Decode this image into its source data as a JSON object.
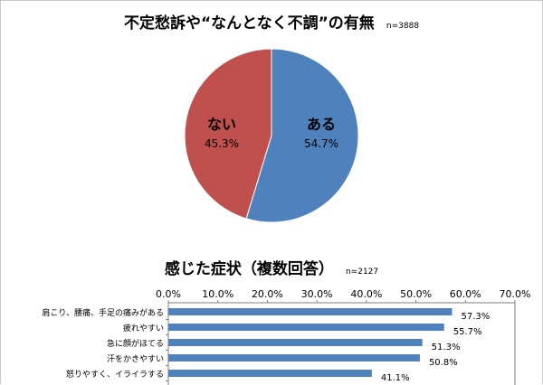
{
  "chart_data": [
    {
      "type": "pie",
      "title": "不定愁訴や“なんとなく不調”の有無",
      "note": "n=3888",
      "slices": [
        {
          "label": "ある",
          "value": 54.7,
          "value_label": "54.7%",
          "color": "#4f81bd"
        },
        {
          "label": "ない",
          "value": 45.3,
          "value_label": "45.3%",
          "color": "#c0504d"
        }
      ]
    },
    {
      "type": "bar",
      "orientation": "horizontal",
      "title": "感じた症状（複数回答）",
      "note": "n=2127",
      "xlim": [
        0,
        70
      ],
      "ticks": [
        "0.0%",
        "10.0%",
        "20.0%",
        "30.0%",
        "40.0%",
        "50.0%",
        "60.0%",
        "70.0%"
      ],
      "tick_values": [
        0,
        10,
        20,
        30,
        40,
        50,
        60,
        70
      ],
      "bar_color": "#4f81bd",
      "categories": [
        "肩こり、腰痛、手足の痛みがある",
        "疲れやすい",
        "急に顔がほてる",
        "汗をかきやすい",
        "怒りやすく、イライラする"
      ],
      "values": [
        57.3,
        55.7,
        51.3,
        50.8,
        41.1
      ],
      "value_labels": [
        "57.3%",
        "55.7%",
        "51.3%",
        "50.8%",
        "41.1%"
      ]
    }
  ]
}
